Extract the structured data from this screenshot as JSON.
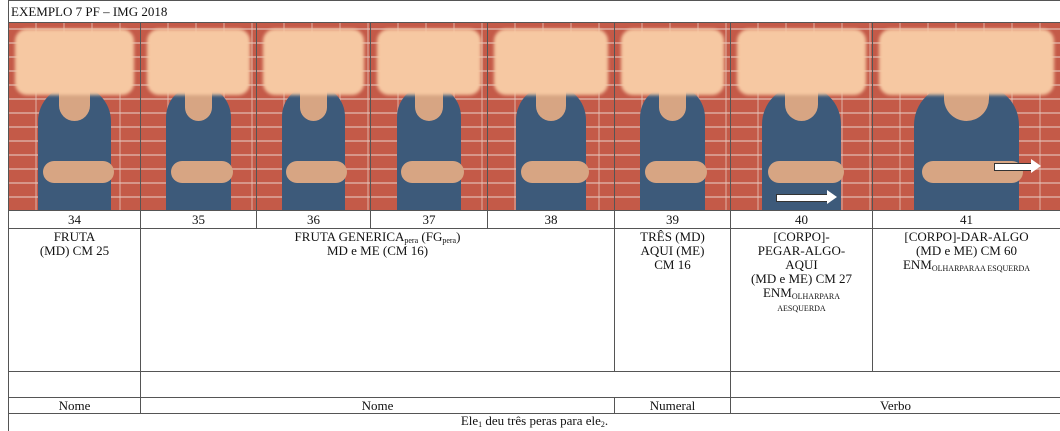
{
  "header": {
    "title": "EXEMPLO 7 PF – IMG 2018"
  },
  "frames": [
    34,
    35,
    36,
    37,
    38,
    39,
    40,
    41
  ],
  "glosses": [
    {
      "lines": [
        [
          {
            "text": "FRUTA"
          }
        ],
        [
          {
            "text": "(MD)  CM 25"
          }
        ]
      ]
    },
    {
      "lines": [
        [
          {
            "text": "FRUTA GENERICA"
          },
          {
            "sub": "pera"
          },
          {
            "text": " (FG"
          },
          {
            "sub": "pera"
          },
          {
            "text": ")"
          }
        ],
        [
          {
            "text": "MD e ME (CM 16)"
          }
        ]
      ]
    },
    {
      "lines": [
        [
          {
            "text": "TRÊS (MD)"
          }
        ],
        [
          {
            "text": "AQUI (ME)"
          }
        ],
        [
          {
            "text": "CM 16"
          }
        ]
      ]
    },
    {
      "lines": [
        [
          {
            "text": "[CORPO]-"
          }
        ],
        [
          {
            "text": "PEGAR-ALGO-"
          }
        ],
        [
          {
            "text": "AQUI"
          }
        ],
        [
          {
            "text": "(MD e ME) CM 27"
          }
        ],
        [
          {
            "text": "ENM"
          },
          {
            "sub": "OLHARPARA"
          }
        ],
        [
          {
            "sub": "AESQUERDA"
          }
        ]
      ]
    },
    {
      "lines": [
        [
          {
            "text": "[CORPO]-DAR-ALGO"
          }
        ],
        [
          {
            "text": "(MD e ME) CM 60"
          }
        ],
        [
          {
            "text": "ENM"
          },
          {
            "sub": "OLHARPARAA ESQUERDA"
          }
        ]
      ]
    }
  ],
  "classes": [
    "Nome",
    "Nome",
    "Numeral",
    "Verbo"
  ],
  "translation": [
    {
      "text": "Ele"
    },
    {
      "sub": "1"
    },
    {
      "text": " deu três peras para ele"
    },
    {
      "sub": "2"
    },
    {
      "text": "."
    }
  ]
}
